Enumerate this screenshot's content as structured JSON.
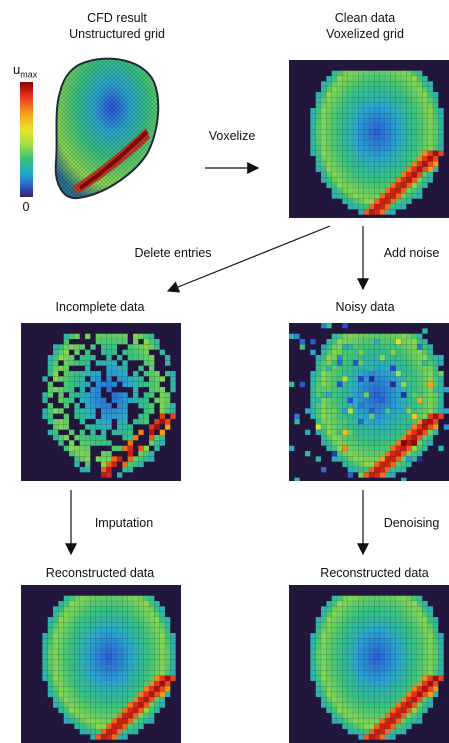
{
  "titles": {
    "cfd_line1": "CFD result",
    "cfd_line2": "Unstructured grid",
    "clean_line1": "Clean data",
    "clean_line2": "Voxelized grid",
    "incomplete": "Incomplete data",
    "noisy": "Noisy data",
    "recon_left": "Reconstructed data",
    "recon_right": "Reconstructed data"
  },
  "arrows": {
    "voxelize": "Voxelize",
    "delete": "Delete entries",
    "add_noise": "Add noise",
    "imputation": "Imputation",
    "denoising": "Denoising"
  },
  "colorbar": {
    "max_base": "u",
    "max_sub": "max",
    "min": "0"
  },
  "colors": {
    "background": "#22163c",
    "low": "#2b4fd6",
    "mid": "#37c27e",
    "high": "#8b0000"
  }
}
